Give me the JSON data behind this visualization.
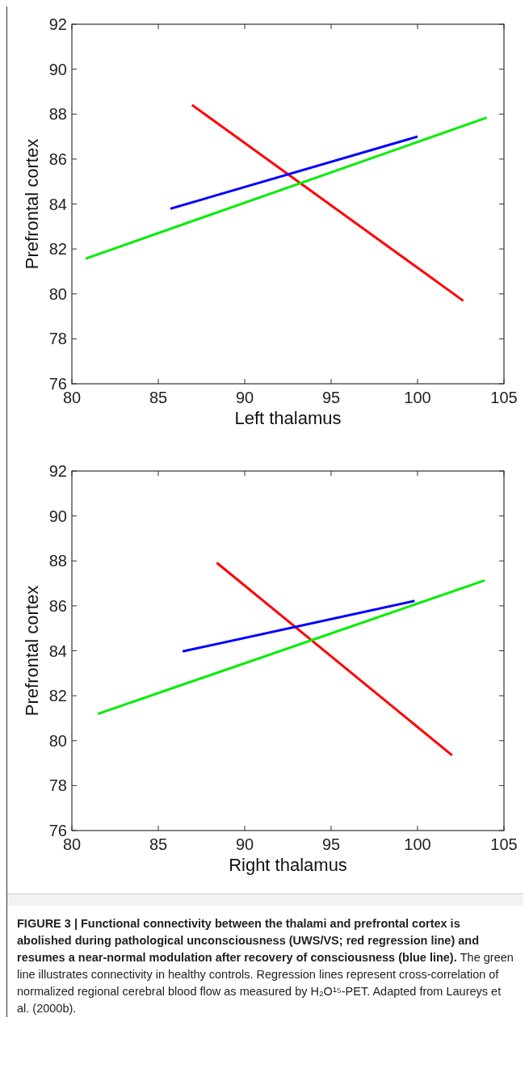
{
  "chart_data": [
    {
      "type": "line",
      "xlabel": "Left thalamus",
      "ylabel": "Prefrontal cortex",
      "xlim": [
        80,
        105
      ],
      "ylim": [
        76,
        92
      ],
      "xticks": [
        80,
        85,
        90,
        95,
        100,
        105
      ],
      "yticks": [
        76,
        78,
        80,
        82,
        84,
        86,
        88,
        90,
        92
      ],
      "line_style": "solid",
      "marker": "none",
      "series": [
        {
          "color": "#ff0000",
          "x": [
            86.95,
            102.65
          ],
          "values": [
            88.41,
            79.69
          ]
        },
        {
          "color": "#0000ff",
          "x": [
            85.7,
            100
          ],
          "values": [
            83.79,
            87.0
          ]
        },
        {
          "color": "#00ee00",
          "x": [
            80.8,
            104
          ],
          "values": [
            81.57,
            87.84
          ]
        }
      ]
    },
    {
      "type": "line",
      "xlabel": "Right thalamus",
      "ylabel": "Prefrontal cortex",
      "xlim": [
        80,
        105
      ],
      "ylim": [
        76,
        92
      ],
      "xticks": [
        80,
        85,
        90,
        95,
        100,
        105
      ],
      "yticks": [
        76,
        78,
        80,
        82,
        84,
        86,
        88,
        90,
        92
      ],
      "line_style": "solid",
      "marker": "none",
      "series": [
        {
          "color": "#ff0000",
          "x": [
            88.38,
            102
          ],
          "values": [
            87.92,
            79.35
          ]
        },
        {
          "color": "#0000ff",
          "x": [
            86.41,
            99.83
          ],
          "values": [
            83.97,
            86.22
          ]
        },
        {
          "color": "#00ee00",
          "x": [
            81.5,
            103.88
          ],
          "values": [
            81.19,
            87.13
          ]
        }
      ],
      "annotations": [
        "FIGURE 3 | Functional connectivity between the thalami and prefrontal cortex is abolished during pathological unconsciousness (UWS/VS; red regression line) and resumes a near-normal modulation after recovery of consciousness (blue line).",
        "The green line illustrates connectivity in healthy controls. Regression lines represent cross-correlation of normalized regional cerebral blood flow as measured by H₂O¹⁵-PET. Adapted from Laureys et al. (2000b)."
      ]
    }
  ]
}
